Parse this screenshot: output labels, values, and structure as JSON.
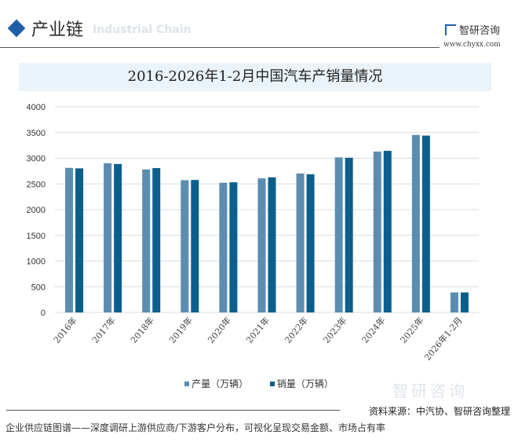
{
  "header": {
    "section_title": "产业链",
    "section_subtitle": "Industrial Chain",
    "logo_text": "智研咨询",
    "logo_url": "www.chyxx.com"
  },
  "colors": {
    "production": "#5b8db0",
    "sales": "#0b5f8c",
    "title_bg": "#eaf3fa",
    "accent": "#1e5fa8"
  },
  "chart_data": {
    "type": "bar",
    "title": "2016-2026年1-2月中国汽车产销量情况",
    "categories": [
      "2016年",
      "2017年",
      "2018年",
      "2019年",
      "2020年",
      "2021年",
      "2022年",
      "2023年",
      "2024年",
      "2025年",
      "2026年1-2月"
    ],
    "series": [
      {
        "name": "产量（万辆）",
        "values": [
          2811.9,
          2901.5,
          2780.9,
          2572.1,
          2522.5,
          2608.2,
          2702.1,
          3016.1,
          3128.2,
          3453,
          390
        ]
      },
      {
        "name": "销量（万辆）",
        "values": [
          2802.8,
          2887.9,
          2808.1,
          2576.9,
          2531.1,
          2627.5,
          2686.4,
          3009.4,
          3143.6,
          3440,
          390
        ]
      }
    ],
    "yticks": [
      0,
      500,
      1000,
      1500,
      2000,
      2500,
      3000,
      3500,
      4000
    ],
    "ylim": [
      0,
      4000
    ],
    "grid": true,
    "legend_position": "bottom"
  },
  "footer": {
    "source": "资料来源：中汽协、智研咨询整理",
    "tagline": "企业供应链图谱——深度调研上游供应商/下游客户分布，可视化呈现交易金额、市场占有率",
    "watermark": "智研咨询"
  }
}
